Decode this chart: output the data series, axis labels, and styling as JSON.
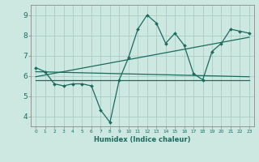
{
  "xlabel": "Humidex (Indice chaleur)",
  "bg_color": "#cce8e0",
  "grid_color": "#aaccC4",
  "line_color": "#1a6b60",
  "xlim": [
    -0.5,
    23.5
  ],
  "ylim": [
    3.5,
    9.5
  ],
  "xticks": [
    0,
    1,
    2,
    3,
    4,
    5,
    6,
    7,
    8,
    9,
    10,
    11,
    12,
    13,
    14,
    15,
    16,
    17,
    18,
    19,
    20,
    21,
    22,
    23
  ],
  "yticks": [
    4,
    5,
    6,
    7,
    8,
    9
  ],
  "main_x": [
    0,
    1,
    2,
    3,
    4,
    5,
    6,
    7,
    8,
    9,
    10,
    11,
    12,
    13,
    14,
    15,
    16,
    17,
    18,
    19,
    20,
    21,
    22,
    23
  ],
  "main_y": [
    6.4,
    6.2,
    5.6,
    5.5,
    5.6,
    5.6,
    5.5,
    4.3,
    3.7,
    5.8,
    6.9,
    8.3,
    9.0,
    8.6,
    7.6,
    8.1,
    7.5,
    6.1,
    5.8,
    7.2,
    7.6,
    8.3,
    8.2,
    8.1
  ],
  "trend1_x": [
    0,
    23
  ],
  "trend1_y": [
    5.95,
    7.9
  ],
  "trend2_x": [
    0,
    23
  ],
  "trend2_y": [
    6.2,
    5.95
  ],
  "flat_line_x": [
    0,
    23
  ],
  "flat_line_y": [
    5.78,
    5.78
  ]
}
